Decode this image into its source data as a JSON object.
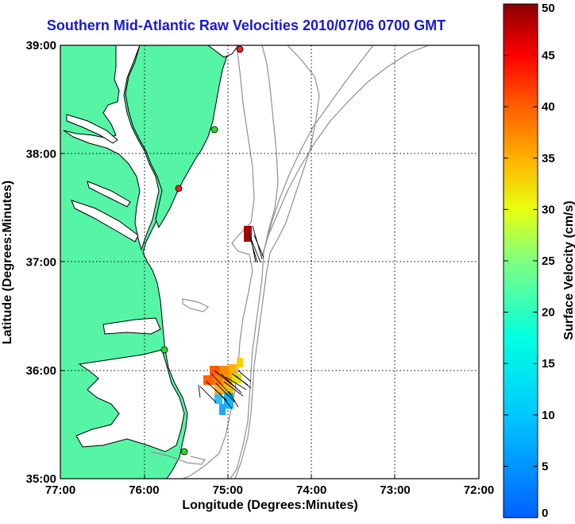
{
  "title": "Southern Mid-Atlantic Raw Velocities 2010/07/06 0700 GMT",
  "map": {
    "xlabel": "Longitude (Degrees:Minutes)",
    "ylabel": "Latitude (Degrees:Minutes)",
    "x_ticks": [
      "77:00",
      "76:00",
      "75:00",
      "74:00",
      "73:00",
      "72:00"
    ],
    "y_ticks": [
      "39:00",
      "38:00",
      "37:00",
      "36:00",
      "35:00"
    ],
    "lon_range": [
      -77,
      -72
    ],
    "lat_range": [
      35,
      39
    ],
    "grid": true,
    "land_color": "#55f5a5",
    "coast_color": "#000000",
    "bathymetry_color": "#909090",
    "station_colors": {
      "active": "#22dd22",
      "inactive": "#ee2222"
    }
  },
  "colorbar": {
    "label": "Surface Velocity (cm/s)",
    "ticks": [
      "50",
      "45",
      "40",
      "35",
      "30",
      "25",
      "20",
      "15",
      "10",
      "5",
      "0"
    ],
    "range": [
      0,
      50
    ],
    "colormap": "jet"
  }
}
